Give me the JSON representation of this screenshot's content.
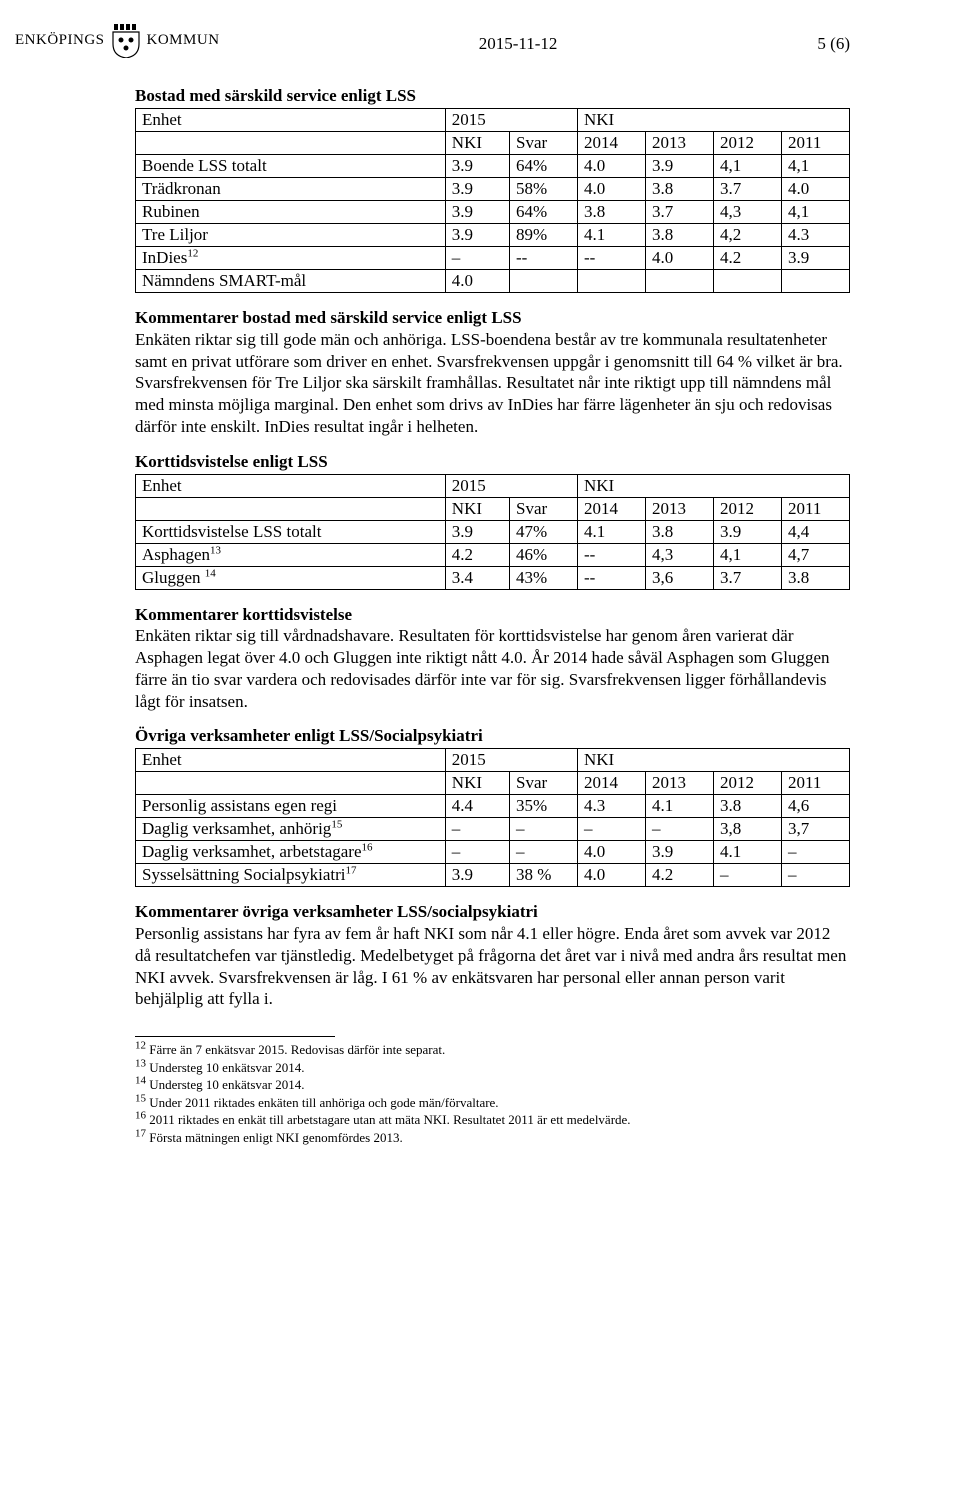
{
  "logo": {
    "name": "ENKÖPINGS",
    "suffix": "KOMMUN"
  },
  "date": "2015-11-12",
  "page_no": "5 (6)",
  "sec1": {
    "title": "Bostad med särskild service enligt LSS",
    "hdr": {
      "enhet": "Enhet",
      "y2015": "2015",
      "nki": "NKI",
      "nki2": "NKI",
      "svar": "Svar",
      "y2014": "2014",
      "y2013": "2013",
      "y2012": "2012",
      "y2011": "2011"
    },
    "rows": [
      {
        "label": "Boende LSS totalt",
        "nki": "3.9",
        "svar": "64%",
        "c14": "4.0",
        "c13": "3.9",
        "c12": "4,1",
        "c11": "4,1"
      },
      {
        "label": "Trädkronan",
        "nki": "3.9",
        "svar": "58%",
        "c14": "4.0",
        "c13": "3.8",
        "c12": "3.7",
        "c11": "4.0"
      },
      {
        "label": "Rubinen",
        "nki": "3.9",
        "svar": "64%",
        "c14": "3.8",
        "c13": "3.7",
        "c12": "4,3",
        "c11": "4,1"
      },
      {
        "label": "Tre Liljor",
        "nki": "3.9",
        "svar": "89%",
        "c14": "4.1",
        "c13": "3.8",
        "c12": "4,2",
        "c11": "4.3"
      },
      {
        "label": "InDies",
        "sup": "12",
        "nki": "–",
        "svar": "--",
        "c14": "--",
        "c13": "4.0",
        "c12": "4.2",
        "c11": "3.9"
      },
      {
        "label": "Nämndens SMART-mål",
        "nki": "4.0",
        "svar": "",
        "c14": "",
        "c13": "",
        "c12": "",
        "c11": ""
      }
    ]
  },
  "comment1_title": "Kommentarer bostad med särskild service enligt LSS",
  "comment1_body": "Enkäten riktar sig till gode män och anhöriga. LSS-boendena består av tre kommunala resultatenheter samt en privat utförare som driver en enhet. Svarsfrekvensen uppgår i genomsnitt till 64 % vilket är bra. Svarsfrekvensen för Tre Liljor ska särskilt framhållas. Resultatet når inte riktigt upp till nämndens mål med minsta möjliga marginal. Den enhet som drivs av InDies har färre lägenheter än sju och redovisas därför inte enskilt. InDies resultat ingår i helheten.",
  "sec2": {
    "title": "Korttidsvistelse enligt LSS",
    "rows": [
      {
        "label": "Korttidsvistelse LSS totalt",
        "nki": "3.9",
        "svar": "47%",
        "c14": "4.1",
        "c13": "3.8",
        "c12": "3.9",
        "c11": "4,4"
      },
      {
        "label": "Asphagen",
        "sup": "13",
        "nki": "4.2",
        "svar": "46%",
        "c14": "--",
        "c13": "4,3",
        "c12": "4,1",
        "c11": "4,7"
      },
      {
        "label": "Gluggen ",
        "sup": "14",
        "nki": "3.4",
        "svar": "43%",
        "c14": "--",
        "c13": "3,6",
        "c12": "3.7",
        "c11": "3.8"
      }
    ]
  },
  "comment2_title": "Kommentarer korttidsvistelse",
  "comment2_body": "Enkäten riktar sig till vårdnadshavare. Resultaten för korttidsvistelse har genom åren varierat där Asphagen legat över 4.0 och Gluggen inte riktigt nått 4.0. År 2014 hade såväl Asphagen som Gluggen färre än tio svar vardera och redovisades därför inte var för sig. Svarsfrekvensen ligger förhållandevis lågt för insatsen.",
  "sec3": {
    "title": "Övriga verksamheter enligt LSS/Socialpsykiatri",
    "rows": [
      {
        "label": "Personlig assistans egen regi",
        "nki": "4.4",
        "svar": "35%",
        "c14": "4.3",
        "c13": "4.1",
        "c12": "3.8",
        "c11": "4,6"
      },
      {
        "label": "Daglig verksamhet, anhörig",
        "sup": "15",
        "nki": "–",
        "svar": "–",
        "c14": "–",
        "c13": "–",
        "c12": "3,8",
        "c11": "3,7"
      },
      {
        "label": "Daglig verksamhet, arbetstagare",
        "sup": "16",
        "nki": "–",
        "svar": "–",
        "c14": "4.0",
        "c13": "3.9",
        "c12": "4.1",
        "c11": "–"
      },
      {
        "label": "Sysselsättning Socialpsykiatri",
        "sup": "17",
        "nki": "3.9",
        "svar": "38 %",
        "c14": "4.0",
        "c13": "4.2",
        "c12": "–",
        "c11": "–"
      }
    ]
  },
  "comment3_title": "Kommentarer övriga verksamheter LSS/socialpsykiatri",
  "comment3_body": "Personlig assistans har fyra av fem år haft NKI som når 4.1 eller högre. Enda året som avvek var 2012 då resultatchefen var tjänstledig. Medelbetyget på frågorna det året var i nivå med andra års resultat men NKI avvek. Svarsfrekvensen är låg. I 61 % av enkätsvaren har personal eller annan person varit behjälplig att fylla i.",
  "footnotes": [
    {
      "n": "12",
      "t": " Färre än 7 enkätsvar 2015. Redovisas därför inte separat."
    },
    {
      "n": "13",
      "t": " Understeg 10 enkätsvar 2014."
    },
    {
      "n": "14",
      "t": " Understeg 10 enkätsvar 2014."
    },
    {
      "n": "15",
      "t": " Under 2011 riktades enkäten till anhöriga och gode män/förvaltare."
    },
    {
      "n": "16",
      "t": " 2011 riktades en enkät till arbetstagare utan att mäta NKI. Resultatet 2011 är ett medelvärde."
    },
    {
      "n": "17",
      "t": " Första mätningen enligt NKI genomfördes 2013."
    }
  ],
  "colwidths": [
    "41%",
    "8.5%",
    "9%",
    "9%",
    "9%",
    "9%",
    "9%"
  ]
}
